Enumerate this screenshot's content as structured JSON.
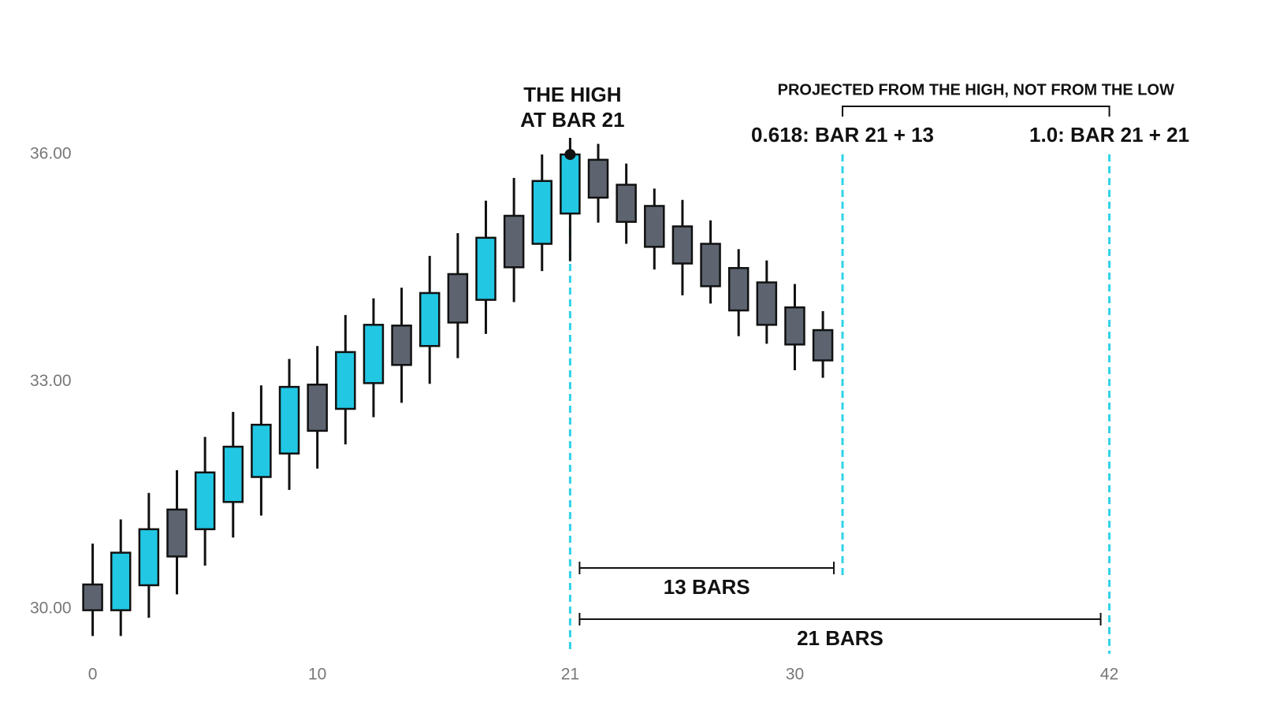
{
  "chart_data": {
    "type": "candlestick",
    "x": [
      0,
      1,
      2,
      3,
      4,
      5,
      6,
      7,
      8,
      9,
      10,
      11,
      12,
      13,
      14,
      15,
      16,
      17,
      18,
      19,
      20,
      21,
      22,
      23,
      24,
      25,
      26
    ],
    "open": [
      30.32,
      29.98,
      30.31,
      31.31,
      31.05,
      31.41,
      31.74,
      32.05,
      32.96,
      32.64,
      32.98,
      33.74,
      33.47,
      34.42,
      34.08,
      35.19,
      34.82,
      35.22,
      35.93,
      35.6,
      35.32,
      35.05,
      34.82,
      34.5,
      34.31,
      33.98,
      33.68
    ],
    "high": [
      30.86,
      31.18,
      31.53,
      31.83,
      32.27,
      32.6,
      32.95,
      33.3,
      33.47,
      33.88,
      34.1,
      34.24,
      34.66,
      34.96,
      35.39,
      35.69,
      36.0,
      36.22,
      36.14,
      35.88,
      35.55,
      35.4,
      35.13,
      34.75,
      34.6,
      34.29,
      33.93
    ],
    "low": [
      29.64,
      29.64,
      29.88,
      30.19,
      30.57,
      30.94,
      31.23,
      31.57,
      31.85,
      32.17,
      32.53,
      32.72,
      32.97,
      33.31,
      33.63,
      34.05,
      34.46,
      34.59,
      35.1,
      34.82,
      34.48,
      34.14,
      34.03,
      33.6,
      33.5,
      33.15,
      33.05
    ],
    "close": [
      29.98,
      30.74,
      31.05,
      30.69,
      31.8,
      32.14,
      32.43,
      32.93,
      32.35,
      33.39,
      33.75,
      33.22,
      34.17,
      33.78,
      34.9,
      34.51,
      35.65,
      36.0,
      35.43,
      35.11,
      34.78,
      34.56,
      34.26,
      33.94,
      33.75,
      33.49,
      33.28
    ],
    "up_color": "#22c7e3",
    "down_color": "#5d6470",
    "xlim": [
      -3.3,
      41.6
    ],
    "ylim": [
      29.3,
      37.0
    ],
    "xticks": [
      0,
      {
        "value": 8,
        "label": "10"
      },
      {
        "value": 17,
        "label": "21"
      },
      {
        "value": 25,
        "label": "30"
      },
      {
        "value": 36.2,
        "label": "42"
      }
    ],
    "yticks": [
      {
        "value": 30,
        "label": "30.00"
      },
      {
        "value": 33,
        "label": "33.00"
      },
      {
        "value": 36,
        "label": "36.00"
      }
    ],
    "annotations": {
      "high_label": [
        "THE HIGH",
        "AT BAR 21"
      ],
      "high_point": {
        "x": 17,
        "y": 36
      },
      "line_color": "#2fd3e8",
      "projections": [
        {
          "x": 26.7,
          "label": "0.618: BAR 21 + 13"
        },
        {
          "x": 36.2,
          "label": "1.0: BAR 21 + 21"
        }
      ],
      "spans": [
        "13 BARS",
        "21 BARS"
      ],
      "bracket_label": "PROJECTED FROM THE HIGH, NOT FROM THE LOW"
    }
  }
}
